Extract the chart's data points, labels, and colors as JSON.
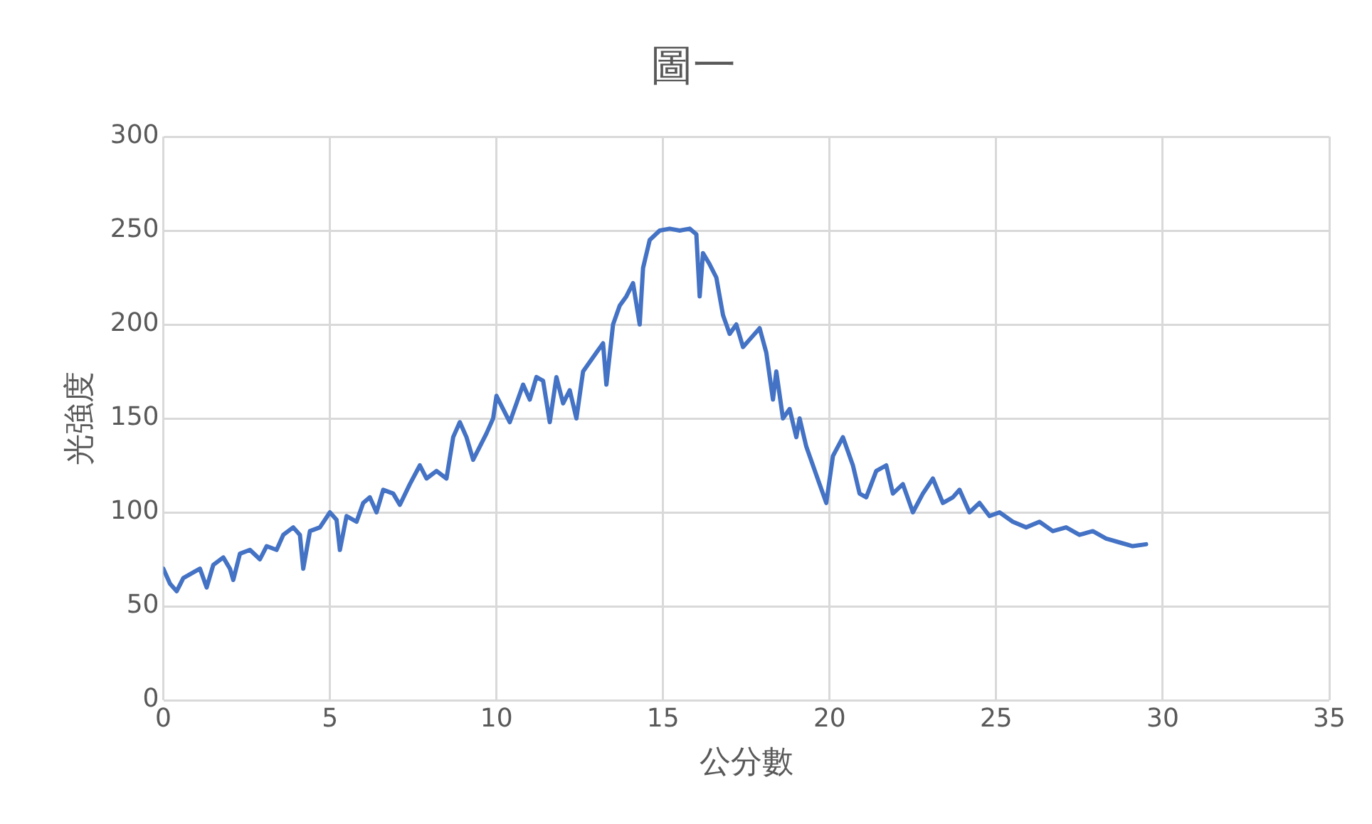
{
  "chart_data": {
    "type": "line",
    "title": "圖一",
    "xlabel": "公分數",
    "ylabel": "光強度",
    "x": [
      0,
      0.2,
      0.4,
      0.6,
      0.9,
      1.1,
      1.3,
      1.5,
      1.8,
      2.0,
      2.1,
      2.3,
      2.6,
      2.9,
      3.1,
      3.4,
      3.6,
      3.9,
      4.1,
      4.2,
      4.4,
      4.7,
      5.0,
      5.2,
      5.3,
      5.5,
      5.8,
      6.0,
      6.2,
      6.4,
      6.6,
      6.9,
      7.1,
      7.4,
      7.7,
      7.9,
      8.2,
      8.5,
      8.7,
      8.9,
      9.1,
      9.3,
      9.5,
      9.7,
      9.9,
      10.0,
      10.2,
      10.4,
      10.6,
      10.8,
      11.0,
      11.2,
      11.4,
      11.6,
      11.8,
      12.0,
      12.2,
      12.4,
      12.6,
      12.8,
      13.0,
      13.2,
      13.3,
      13.5,
      13.7,
      13.9,
      14.1,
      14.3,
      14.4,
      14.6,
      14.9,
      15.2,
      15.5,
      15.8,
      16.0,
      16.1,
      16.2,
      16.4,
      16.6,
      16.8,
      17.0,
      17.2,
      17.4,
      17.6,
      17.9,
      18.1,
      18.3,
      18.4,
      18.6,
      18.8,
      19.0,
      19.1,
      19.3,
      19.5,
      19.7,
      19.9,
      20.1,
      20.4,
      20.7,
      20.9,
      21.1,
      21.4,
      21.7,
      21.9,
      22.2,
      22.5,
      22.8,
      23.1,
      23.4,
      23.7,
      23.9,
      24.2,
      24.5,
      24.8,
      25.1,
      25.5,
      25.9,
      26.3,
      26.7,
      27.1,
      27.5,
      27.9,
      28.3,
      28.7,
      29.1,
      29.5
    ],
    "series": [
      {
        "color": "#4472c4",
        "values": [
          70,
          62,
          58,
          65,
          68,
          70,
          60,
          72,
          76,
          70,
          64,
          78,
          80,
          75,
          82,
          80,
          88,
          92,
          88,
          70,
          90,
          92,
          100,
          96,
          80,
          98,
          95,
          105,
          108,
          100,
          112,
          110,
          104,
          115,
          125,
          118,
          122,
          118,
          140,
          148,
          140,
          128,
          135,
          142,
          150,
          162,
          155,
          148,
          158,
          168,
          160,
          172,
          170,
          148,
          172,
          158,
          165,
          150,
          175,
          180,
          185,
          190,
          168,
          200,
          210,
          215,
          222,
          200,
          230,
          245,
          250,
          251,
          250,
          251,
          248,
          215,
          238,
          232,
          225,
          205,
          195,
          200,
          188,
          192,
          198,
          185,
          160,
          175,
          150,
          155,
          140,
          150,
          135,
          125,
          115,
          105,
          130,
          140,
          125,
          110,
          108,
          122,
          125,
          110,
          115,
          100,
          110,
          118,
          105,
          108,
          112,
          100,
          105,
          98,
          100,
          95,
          92,
          95,
          90,
          92,
          88,
          90,
          86,
          84,
          82,
          83
        ]
      }
    ],
    "xlim": [
      0,
      35
    ],
    "xticks": [
      0,
      5,
      10,
      15,
      20,
      25,
      30,
      35
    ],
    "ylim": [
      0,
      300
    ],
    "yticks": [
      0,
      50,
      100,
      150,
      200,
      250,
      300
    ],
    "grid": true,
    "legend": false,
    "marker": "none",
    "line_style": "solid"
  }
}
